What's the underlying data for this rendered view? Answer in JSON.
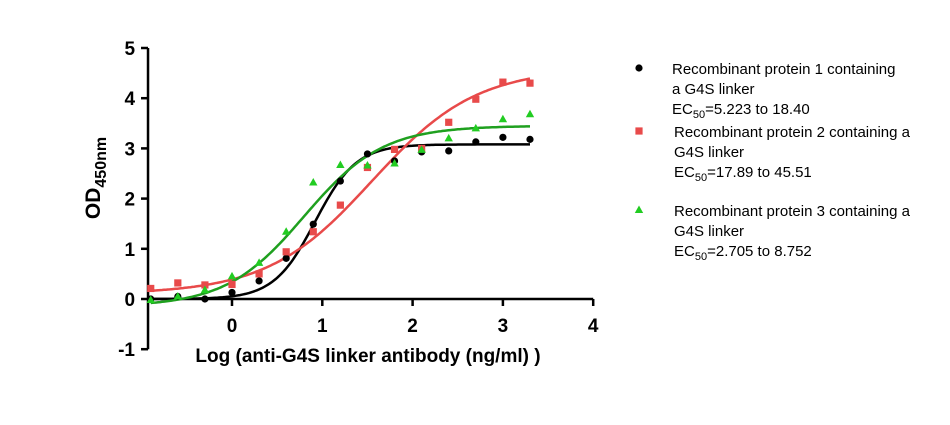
{
  "chart_data": {
    "type": "scatter",
    "title": "",
    "xlabel": "Log (anti-G4S linker antibody (ng/ml) )",
    "ylabel": {
      "main": "OD",
      "sub": "450nm"
    },
    "xlim": [
      -0.93,
      4
    ],
    "ylim": [
      -1,
      5
    ],
    "xticks": [
      "0",
      "1",
      "2",
      "3",
      "4"
    ],
    "yticks": [
      "-1",
      "0",
      "1",
      "2",
      "3",
      "4",
      "5"
    ],
    "grid": false,
    "legend_position": "right",
    "x": [
      -0.9,
      -0.6,
      -0.3,
      0,
      0.3,
      0.6,
      0.9,
      1.2,
      1.5,
      1.8,
      2.1,
      2.4,
      2.7,
      3.0,
      3.3
    ],
    "series": [
      {
        "name": [
          "Recombinant protein 1 containing",
          "a G4S linker"
        ],
        "ec50": {
          "prefix": "EC",
          "sub": "50",
          "text": "=5.223 to 18.40"
        },
        "color": "#000000",
        "marker": "circle",
        "values": [
          0.0,
          0.05,
          0.0,
          0.13,
          0.36,
          0.81,
          1.49,
          2.35,
          2.89,
          2.75,
          2.93,
          2.95,
          3.13,
          3.22,
          3.18
        ],
        "fit": {
          "model": "4PL",
          "bottom": 0.0,
          "top": 3.08,
          "logEC50": 0.92,
          "hill": 1.9
        }
      },
      {
        "name": [
          "Recombinant protein 2 containing a",
          "G4S linker"
        ],
        "ec50": {
          "prefix": "EC",
          "sub": "50",
          "text": "=17.89 to 45.51"
        },
        "color": "#e84a4a",
        "marker": "square",
        "values": [
          0.21,
          0.32,
          0.28,
          0.29,
          0.5,
          0.94,
          1.34,
          1.87,
          2.62,
          2.98,
          3.0,
          3.52,
          3.98,
          4.32,
          4.3
        ],
        "fit": {
          "model": "4PL",
          "bottom": 0.1,
          "top": 4.6,
          "logEC50": 1.55,
          "hill": 0.75
        }
      },
      {
        "name": [
          "Recombinant protein 3 containing a",
          "G4S linker"
        ],
        "ec50": {
          "prefix": "EC",
          "sub": "50",
          "text": "=2.705 to 8.752"
        },
        "color": "#22cc22",
        "marker": "triangle",
        "line_color": "#1fa01f",
        "values": [
          -0.02,
          0.05,
          0.18,
          0.45,
          0.72,
          1.34,
          2.32,
          2.67,
          2.66,
          2.7,
          2.97,
          3.2,
          3.4,
          3.58,
          3.68
        ],
        "fit": {
          "model": "4PL",
          "bottom": -0.15,
          "top": 3.45,
          "logEC50": 0.8,
          "hill": 1.0
        }
      }
    ]
  }
}
